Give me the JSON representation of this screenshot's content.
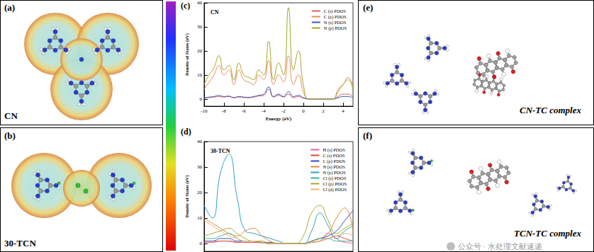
{
  "panels": {
    "a": {
      "label": "(a)",
      "caption": "CN"
    },
    "b": {
      "label": "(b)",
      "caption": "30-TCN"
    },
    "c": {
      "label": "(c)"
    },
    "d": {
      "label": "(d)"
    },
    "e": {
      "label": "(e)",
      "caption": "CN-TC complex"
    },
    "f": {
      "label": "(f)",
      "caption": "TCN-TC complex"
    }
  },
  "watermark": "公众号 · 水处理文献速递",
  "chart_data": [
    {
      "type": "line",
      "title": "CN",
      "x_label": "Energy (eV)",
      "y_label": "Density of States (eV)",
      "x": [
        -10,
        -9.5,
        -9,
        -8.5,
        -8,
        -7.5,
        -7,
        -6.5,
        -6,
        -5.5,
        -5,
        -4.5,
        -4,
        -3.5,
        -3,
        -2.5,
        -2,
        -1.5,
        -1,
        -0.5,
        0,
        0.5,
        1,
        1.5,
        2,
        2.5,
        3,
        3.5,
        4,
        4.5,
        5
      ],
      "series": [
        {
          "name": "C (s) PDOS",
          "color": "#e0605c",
          "values": [
            0.3,
            0.5,
            0.8,
            1,
            0.8,
            1,
            0.5,
            0.8,
            0.6,
            0.5,
            0.8,
            1.2,
            1.5,
            4,
            0.8,
            1.5,
            0.8,
            2,
            0.5,
            1,
            0.3,
            0,
            0,
            0,
            0,
            0,
            0,
            1,
            2,
            2,
            1
          ]
        },
        {
          "name": "C (p) PDOS",
          "color": "#f08a5d",
          "values": [
            4,
            7,
            10,
            14,
            10,
            12,
            6,
            12,
            8,
            7,
            6,
            10,
            8,
            16,
            6,
            10,
            7,
            18,
            6,
            10,
            3,
            0,
            0,
            0,
            0,
            0,
            0,
            4,
            6,
            9,
            5
          ]
        },
        {
          "name": "N (s) PDOS",
          "color": "#3a56c0",
          "values": [
            0.5,
            0.8,
            1,
            1.5,
            1,
            1.2,
            0.6,
            1,
            0.8,
            0.7,
            1,
            1.5,
            2,
            5,
            1,
            2,
            1,
            3,
            1,
            1.5,
            0.5,
            0,
            0,
            0,
            0,
            0,
            0,
            0.5,
            1,
            1,
            0.5
          ]
        },
        {
          "name": "N (p) PDOS",
          "color": "#a4a626",
          "values": [
            6,
            10,
            13,
            18,
            12,
            14,
            8,
            15,
            10,
            9,
            8,
            12,
            10,
            24,
            8,
            15,
            10,
            38,
            12,
            20,
            6,
            0,
            0,
            0,
            0,
            0,
            0,
            3,
            6,
            8,
            4
          ]
        }
      ],
      "xlim": [
        -10,
        5
      ],
      "xticks": [
        -10,
        -8,
        -6,
        -4,
        -2,
        0,
        2,
        4
      ],
      "ylim": [
        -3,
        40
      ],
      "yticks": [
        0,
        10,
        20,
        30,
        40
      ],
      "legend": "top-right",
      "grid": false
    },
    {
      "type": "line",
      "title": "30-TCN",
      "y_label": "Density of States (eV)",
      "x": [
        -10,
        -9,
        -8,
        -7,
        -6,
        -5,
        -4,
        -3,
        -2,
        -1,
        0,
        1,
        2,
        3,
        4,
        5,
        6,
        7,
        8
      ],
      "series": [
        {
          "name": "H (s) PDOS",
          "color": "#e8608c",
          "values": [
            1,
            1,
            1,
            1,
            0.5,
            0.5,
            0.5,
            0.5,
            0,
            0,
            0,
            0,
            0,
            0.5,
            1,
            4,
            2,
            0.5,
            0.2
          ]
        },
        {
          "name": "C (s) PDOS",
          "color": "#d84a3a",
          "values": [
            0.5,
            0.5,
            1,
            1,
            0.5,
            0.5,
            0.5,
            0.3,
            0,
            0,
            0,
            0,
            0,
            0.5,
            1,
            2,
            3,
            2,
            1
          ]
        },
        {
          "name": "C (p) PDOS",
          "color": "#2f4fb8",
          "values": [
            1,
            1,
            2,
            2,
            1,
            1,
            1,
            0.5,
            0.5,
            0,
            0,
            0,
            0,
            1,
            2,
            3,
            5,
            9,
            13
          ]
        },
        {
          "name": "N (s) PDOS",
          "color": "#e0883c",
          "values": [
            10,
            8,
            6,
            4,
            3,
            5,
            6,
            3,
            1,
            0,
            0,
            0,
            0,
            1,
            2,
            4,
            10,
            14,
            5
          ]
        },
        {
          "name": "N (p) PDOS",
          "color": "#2aa0c8",
          "values": [
            15,
            10,
            28,
            35,
            18,
            5,
            4,
            3,
            2,
            1,
            0,
            0,
            0,
            5,
            12,
            7,
            2,
            5,
            7
          ]
        },
        {
          "name": "Cl (s) PDOS",
          "color": "#3cb09c",
          "values": [
            2,
            2,
            3,
            4,
            2,
            1,
            1,
            0.5,
            0,
            0,
            0,
            0,
            0,
            1,
            2,
            2,
            1,
            1,
            1
          ]
        },
        {
          "name": "Cl (p) PDOS",
          "color": "#aaa82a",
          "values": [
            3,
            4,
            5,
            6,
            4,
            2,
            1,
            1,
            0,
            0,
            0,
            0,
            3,
            12,
            15,
            9,
            4,
            6,
            8
          ]
        },
        {
          "name": "Cl (d) PDOS",
          "color": "#f0b464",
          "values": [
            9,
            7,
            5,
            3,
            2,
            1,
            1,
            0.5,
            0,
            0,
            0,
            0,
            0,
            0.5,
            1,
            2,
            3,
            4,
            3
          ]
        }
      ],
      "xlim": [
        -10,
        8
      ],
      "ylim": [
        -3,
        40
      ],
      "yticks": [
        0,
        10,
        20,
        30,
        40
      ],
      "tick_labels": "y",
      "legend": "top-right",
      "grid": false
    }
  ]
}
